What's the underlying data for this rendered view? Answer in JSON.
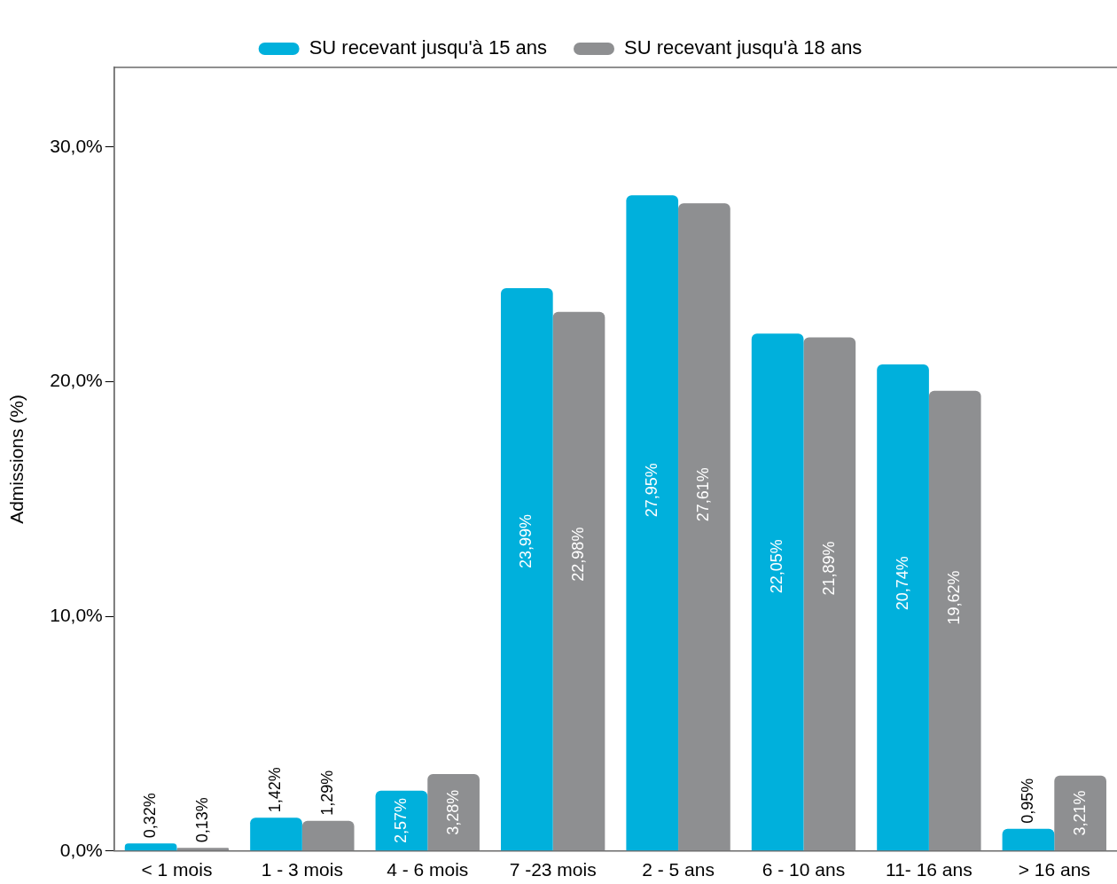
{
  "chart_data": {
    "type": "bar",
    "ylabel": "Admissions (%)",
    "categories": [
      "< 1 mois",
      "1 - 3 mois",
      "4 - 6 mois",
      "7 -23 mois",
      "2 - 5 ans",
      "6 - 10 ans",
      "11- 16 ans",
      "> 16 ans"
    ],
    "series": [
      {
        "name": "SU recevant jusqu'à 15 ans",
        "color": "#00b0dc",
        "values": [
          0.32,
          1.42,
          2.57,
          23.99,
          27.95,
          22.05,
          20.74,
          0.95
        ],
        "value_labels": [
          "0,32%",
          "1,42%",
          "2,57%",
          "23,99%",
          "27,95%",
          "22,05%",
          "20,74%",
          "0,95%"
        ]
      },
      {
        "name": "SU recevant jusqu'à 18 ans",
        "color": "#8e8f91",
        "values": [
          0.13,
          1.29,
          3.28,
          22.98,
          27.61,
          21.89,
          19.62,
          3.21
        ],
        "value_labels": [
          "0,13%",
          "1,29%",
          "3,28%",
          "22,98%",
          "27,61%",
          "21,89%",
          "19,62%",
          "3,21%"
        ]
      }
    ],
    "ylim": [
      0,
      33.4
    ],
    "yticks": [
      {
        "value": 0,
        "label": "0,0%"
      },
      {
        "value": 10,
        "label": "10,0%"
      },
      {
        "value": 20,
        "label": "20,0%"
      },
      {
        "value": 30,
        "label": "30,0%"
      }
    ],
    "grid": false,
    "legend": "top"
  }
}
